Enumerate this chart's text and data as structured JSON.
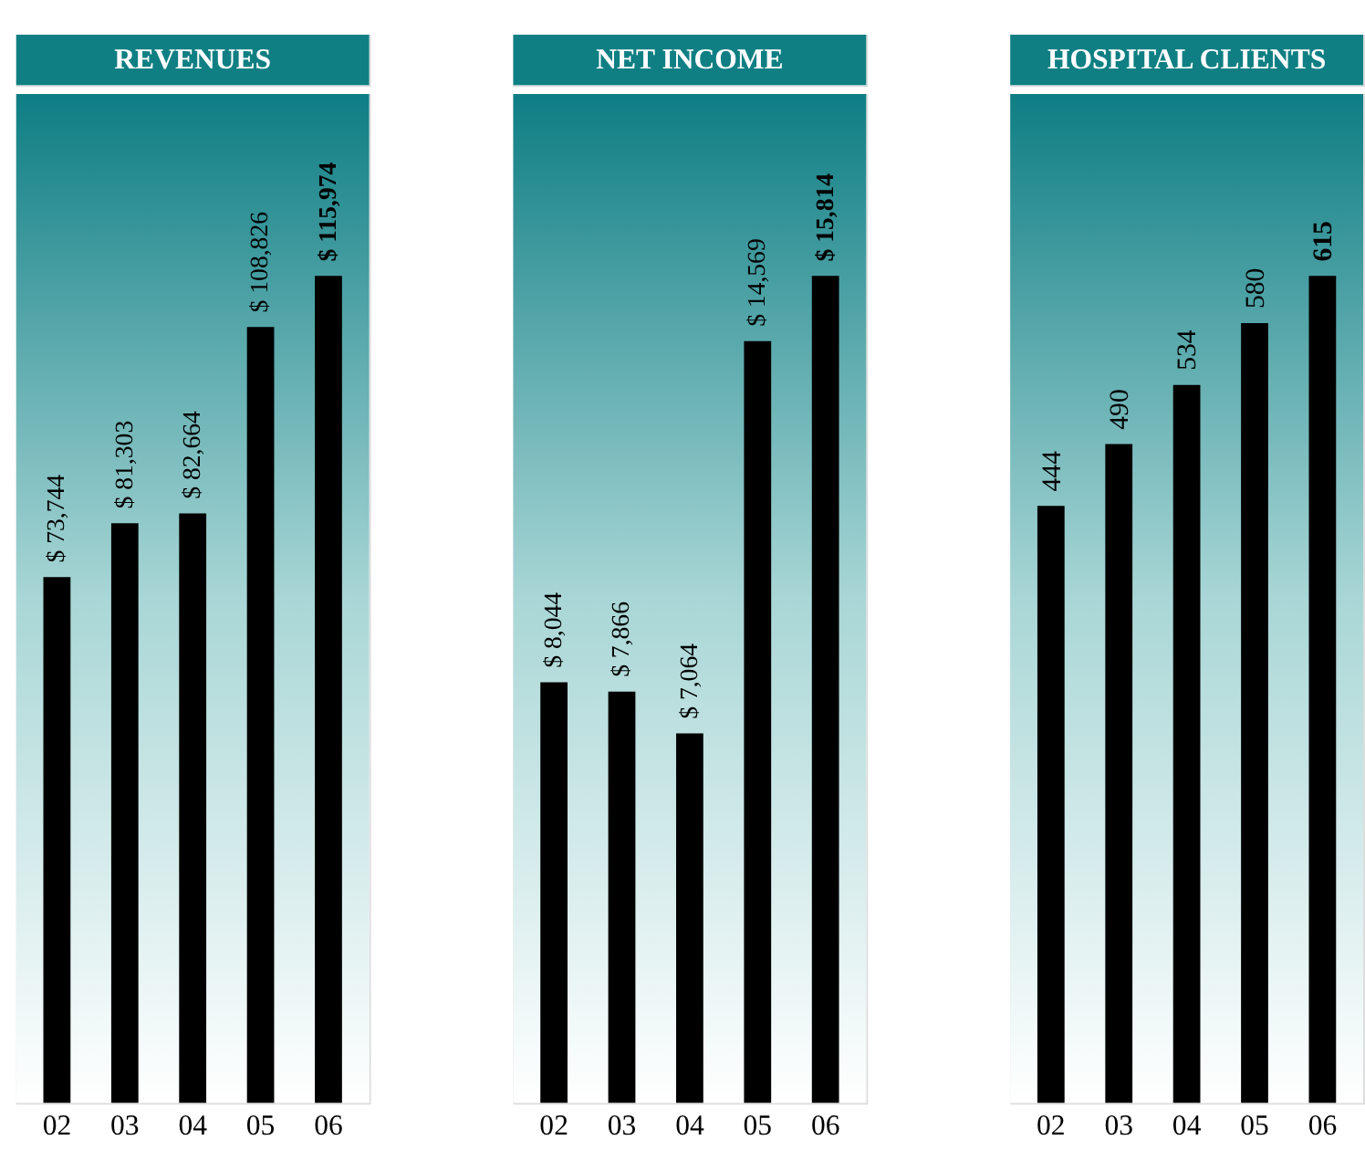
{
  "chart_data": [
    {
      "type": "bar",
      "title": "REVENUES",
      "categories": [
        "02",
        "03",
        "04",
        "05",
        "06"
      ],
      "values": [
        73744,
        81303,
        82664,
        108826,
        115974
      ],
      "color": "#000000",
      "value_labels": [
        "$ 73,744",
        "$ 81,303",
        "$ 82,664",
        "$ 108,826",
        "$ 115,974"
      ],
      "tick_labels": "x",
      "grid": false
    },
    {
      "type": "bar",
      "title": "NET INCOME",
      "categories": [
        "02",
        "03",
        "04",
        "05",
        "06"
      ],
      "values": [
        8044,
        7866,
        7064,
        14569,
        15814
      ],
      "color": "#000000",
      "value_labels": [
        "$ 8,044",
        "$ 7,866",
        "$ 7,064",
        "$ 14,569",
        "$ 15,814"
      ],
      "tick_labels": "x",
      "grid": false
    },
    {
      "type": "bar",
      "title": "HOSPITAL CLIENTS",
      "categories": [
        "02",
        "03",
        "04",
        "05",
        "06"
      ],
      "values": [
        444,
        490,
        534,
        580,
        615
      ],
      "color": "#000000",
      "data_labels": true,
      "tick_labels": "x",
      "grid": false
    }
  ]
}
